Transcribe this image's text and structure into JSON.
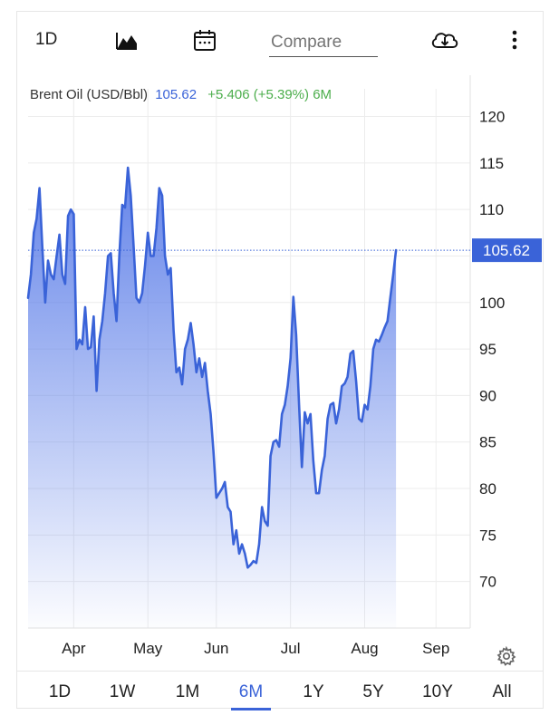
{
  "toolbar": {
    "interval_label": "1D",
    "compare_placeholder": "Compare",
    "icons": [
      "mountain-chart-icon",
      "calendar-icon",
      "cloud-download-icon",
      "more-vertical-icon"
    ]
  },
  "quote": {
    "name": "Brent Oil (USD/Bbl)",
    "price": "105.62",
    "change": "+5.406 (+5.39%)",
    "period": "6M"
  },
  "ranges": {
    "items": [
      "1D",
      "1W",
      "1M",
      "6M",
      "1Y",
      "5Y",
      "10Y",
      "All"
    ],
    "active": "6M"
  },
  "colors": {
    "line": "#3a63d8",
    "fill_top": "#5b7de8",
    "positive": "#4cae4c",
    "price_label_bg": "#3a63d8"
  },
  "chart_data": {
    "type": "area",
    "title": "Brent Oil (USD/Bbl)",
    "ylim": [
      65,
      122
    ],
    "yticks": [
      70,
      75,
      80,
      85,
      90,
      95,
      100,
      105,
      110,
      115,
      120
    ],
    "xlim": [
      0,
      155
    ],
    "xticks": [
      {
        "label": "Apr",
        "x": 16
      },
      {
        "label": "May",
        "x": 42
      },
      {
        "label": "Jun",
        "x": 66
      },
      {
        "label": "Jul",
        "x": 92
      },
      {
        "label": "Aug",
        "x": 118
      },
      {
        "label": "Sep",
        "x": 143
      }
    ],
    "last_price": 105.62,
    "last_price_label": "105.62",
    "grid": true,
    "series": [
      {
        "values": [
          [
            0,
            100.5
          ],
          [
            1,
            103
          ],
          [
            2,
            107.5
          ],
          [
            3,
            109
          ],
          [
            4,
            112.3
          ],
          [
            5,
            106
          ],
          [
            6,
            100
          ],
          [
            7,
            104.5
          ],
          [
            8,
            103
          ],
          [
            9,
            102.5
          ],
          [
            10,
            105
          ],
          [
            11,
            107.3
          ],
          [
            12,
            103
          ],
          [
            13,
            102
          ],
          [
            14,
            109.3
          ],
          [
            15,
            110
          ],
          [
            16,
            109.5
          ],
          [
            17,
            95
          ],
          [
            18,
            96
          ],
          [
            19,
            95.5
          ],
          [
            20,
            99.5
          ],
          [
            21,
            95
          ],
          [
            22,
            95.2
          ],
          [
            23,
            98.5
          ],
          [
            24,
            90.5
          ],
          [
            25,
            96
          ],
          [
            26,
            98
          ],
          [
            27,
            101
          ],
          [
            28,
            105
          ],
          [
            29,
            105.3
          ],
          [
            30,
            101
          ],
          [
            31,
            98
          ],
          [
            32,
            105
          ],
          [
            33,
            110.5
          ],
          [
            34,
            110.2
          ],
          [
            35,
            114.5
          ],
          [
            36,
            111.5
          ],
          [
            37,
            106
          ],
          [
            38,
            100.5
          ],
          [
            39,
            100
          ],
          [
            40,
            101
          ],
          [
            41,
            104
          ],
          [
            42,
            107.5
          ],
          [
            43,
            105
          ],
          [
            44,
            105
          ],
          [
            45,
            108
          ],
          [
            46,
            112.3
          ],
          [
            47,
            111.5
          ],
          [
            48,
            105
          ],
          [
            49,
            103
          ],
          [
            50,
            103.7
          ],
          [
            51,
            97
          ],
          [
            52,
            92.5
          ],
          [
            53,
            93
          ],
          [
            54,
            91.2
          ],
          [
            55,
            95
          ],
          [
            56,
            96
          ],
          [
            57,
            97.8
          ],
          [
            58,
            95.5
          ],
          [
            59,
            92.5
          ],
          [
            60,
            94
          ],
          [
            61,
            92
          ],
          [
            62,
            93.5
          ],
          [
            63,
            90.5
          ],
          [
            64,
            88
          ],
          [
            65,
            84
          ],
          [
            66,
            79
          ],
          [
            67,
            79.5
          ],
          [
            68,
            80
          ],
          [
            69,
            80.7
          ],
          [
            70,
            78
          ],
          [
            71,
            77.5
          ],
          [
            72,
            74
          ],
          [
            73,
            75.5
          ],
          [
            74,
            73
          ],
          [
            75,
            74
          ],
          [
            76,
            73
          ],
          [
            77,
            71.5
          ],
          [
            78,
            71.8
          ],
          [
            79,
            72.2
          ],
          [
            80,
            72
          ],
          [
            81,
            74
          ],
          [
            82,
            78
          ],
          [
            83,
            76.5
          ],
          [
            84,
            76
          ],
          [
            85,
            83.5
          ],
          [
            86,
            85
          ],
          [
            87,
            85.2
          ],
          [
            88,
            84.5
          ],
          [
            89,
            88
          ],
          [
            90,
            89
          ],
          [
            91,
            91
          ],
          [
            92,
            94
          ],
          [
            93,
            100.6
          ],
          [
            94,
            96.5
          ],
          [
            95,
            89
          ],
          [
            96,
            82.3
          ],
          [
            97,
            88.2
          ],
          [
            98,
            87
          ],
          [
            99,
            88
          ],
          [
            100,
            83
          ],
          [
            101,
            79.5
          ],
          [
            102,
            79.5
          ],
          [
            103,
            82
          ],
          [
            104,
            83.5
          ],
          [
            105,
            87.5
          ],
          [
            106,
            89
          ],
          [
            107,
            89.2
          ],
          [
            108,
            87
          ],
          [
            109,
            88.5
          ],
          [
            110,
            91
          ],
          [
            111,
            91.3
          ],
          [
            112,
            92
          ],
          [
            113,
            94.5
          ],
          [
            114,
            94.8
          ],
          [
            115,
            91.5
          ],
          [
            116,
            87.5
          ],
          [
            117,
            87.2
          ],
          [
            118,
            89
          ],
          [
            119,
            88.5
          ],
          [
            120,
            91
          ],
          [
            121,
            95
          ],
          [
            122,
            96
          ],
          [
            123,
            95.8
          ],
          [
            124,
            96.5
          ],
          [
            125,
            97.3
          ],
          [
            126,
            98
          ],
          [
            127,
            100.5
          ],
          [
            128,
            103
          ],
          [
            129,
            105.62
          ]
        ]
      }
    ]
  }
}
